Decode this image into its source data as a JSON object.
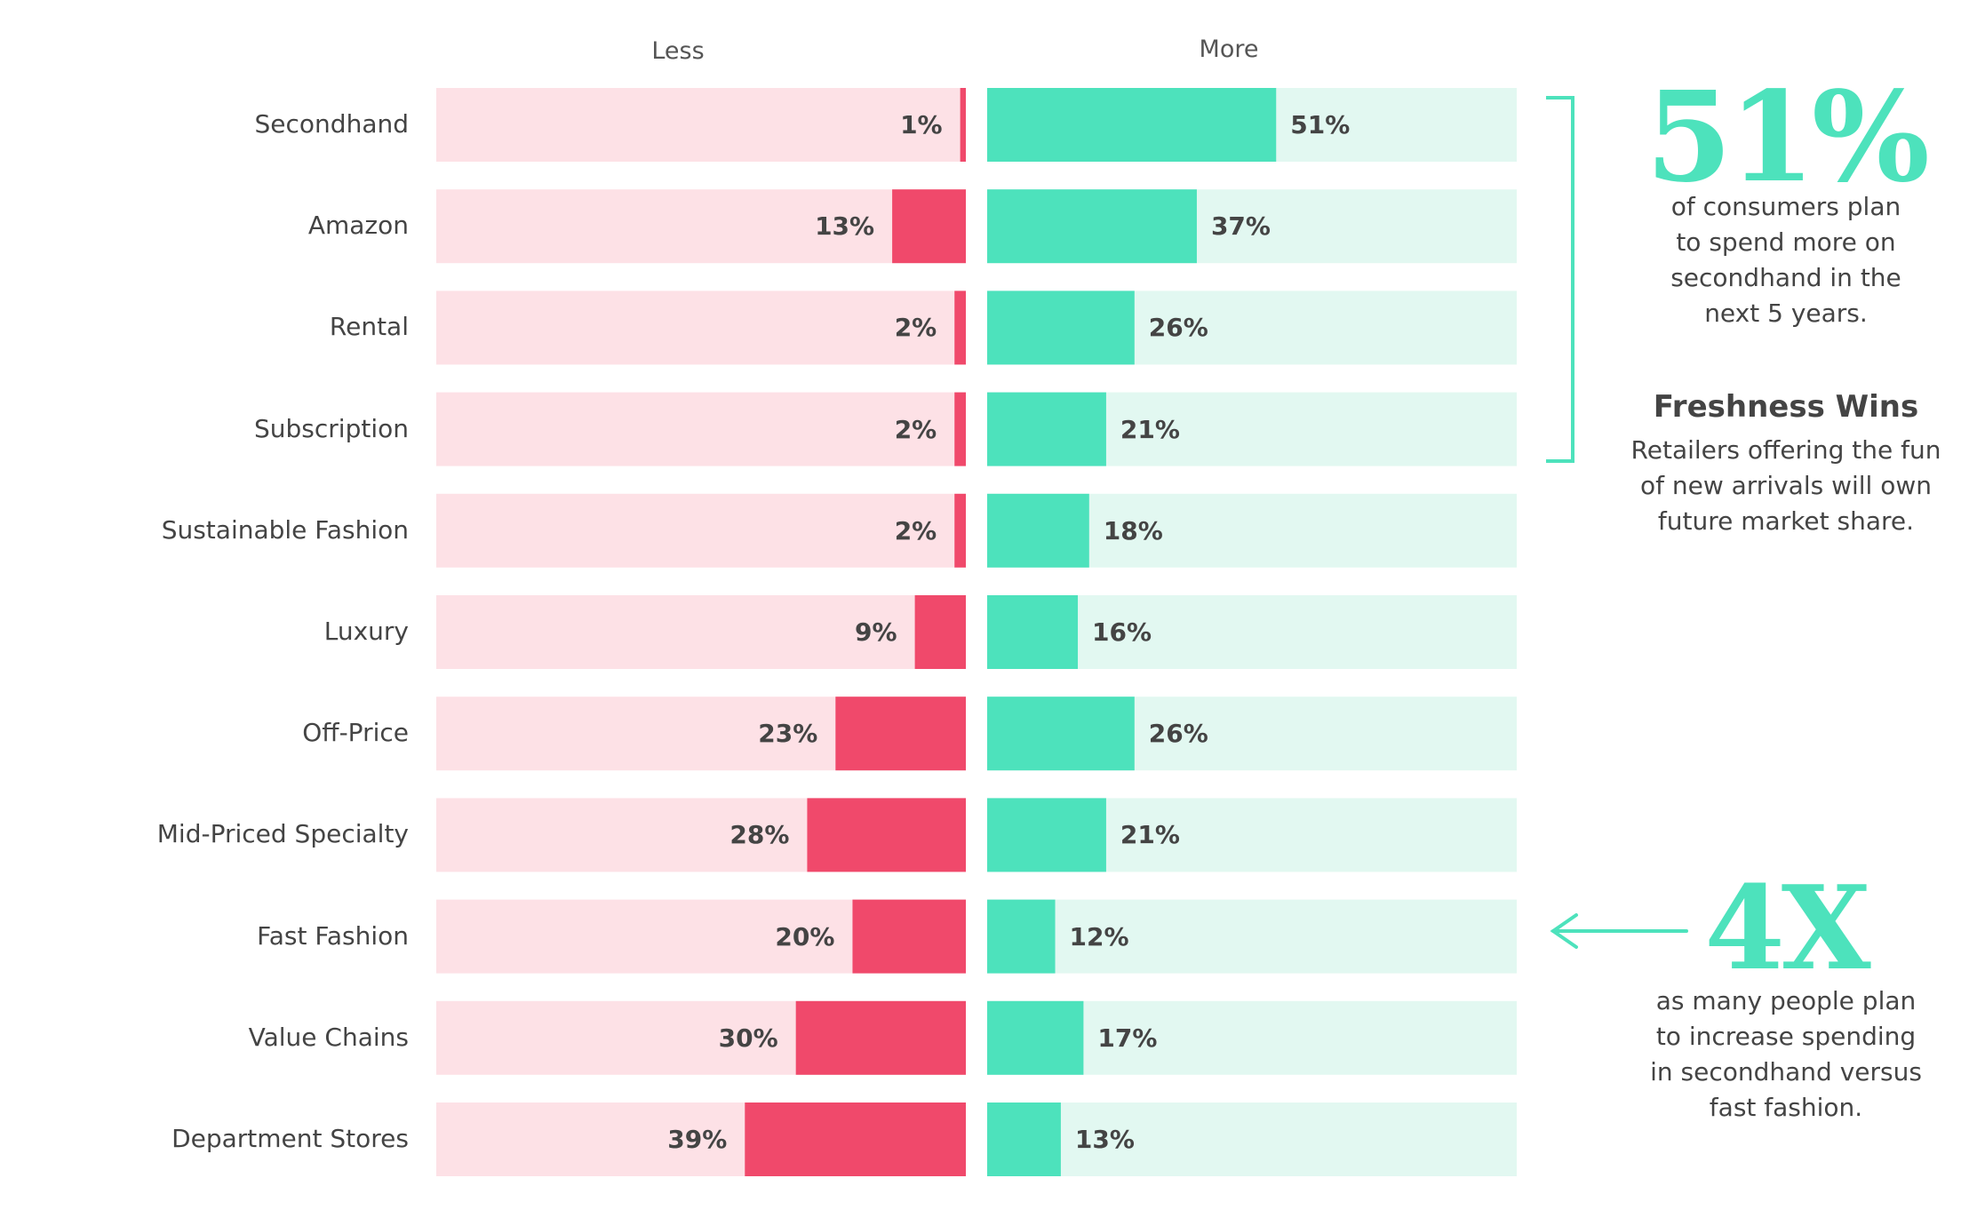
{
  "chart_data": {
    "type": "bar",
    "subtype": "diverging-horizontal",
    "series": [
      {
        "name": "Less",
        "values": [
          1,
          13,
          2,
          2,
          2,
          9,
          23,
          28,
          20,
          30,
          39
        ],
        "color": "#f0496b",
        "track_color": "#fde1e6"
      },
      {
        "name": "More",
        "values": [
          51,
          37,
          26,
          21,
          18,
          16,
          26,
          21,
          12,
          17,
          13
        ],
        "color": "#4de2bc",
        "track_color": "#e2f8f1"
      }
    ],
    "categories": [
      "Secondhand",
      "Amazon",
      "Rental",
      "Subscription",
      "Sustainable Fashion",
      "Luxury",
      "Off-Price",
      "Mid-Priced Specialty",
      "Fast Fashion",
      "Value Chains",
      "Department Stores"
    ],
    "labels_less": [
      "1%",
      "13%",
      "2%",
      "2%",
      "2%",
      "9%",
      "23%",
      "28%",
      "20%",
      "30%",
      "39%"
    ],
    "labels_more": [
      "51%",
      "37%",
      "26%",
      "21%",
      "18%",
      "16%",
      "26%",
      "21%",
      "12%",
      "17%",
      "13%"
    ],
    "column_headers": {
      "less": "Less",
      "more": "More"
    },
    "xlim": [
      0,
      100
    ]
  },
  "callouts": {
    "stat1": {
      "number": "51%",
      "lines": [
        "of consumers plan",
        "to spend more on",
        "secondhand in the",
        "next 5 years."
      ]
    },
    "freshness": {
      "heading": "Freshness Wins",
      "lines": [
        "Retailers offering the fun",
        "of new arrivals will own",
        "future market share."
      ]
    },
    "stat2": {
      "number": "4X",
      "lines": [
        "as many people plan",
        "to increase spending",
        "in secondhand versus",
        "fast fashion."
      ]
    }
  },
  "colors": {
    "accent": "#4de2bc",
    "less": "#f0496b",
    "text": "#444444"
  }
}
